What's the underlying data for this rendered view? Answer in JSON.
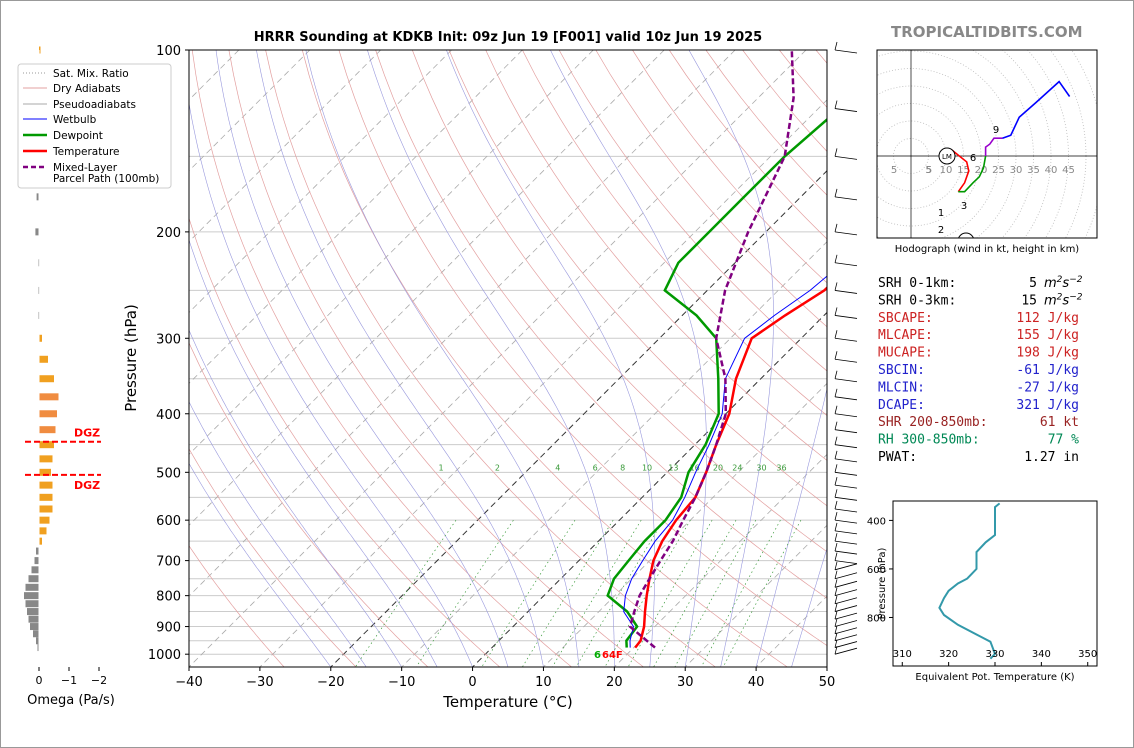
{
  "brand": "TROPICALTIDBITS.COM",
  "chart_data": [
    {
      "type": "line",
      "title": "HRRR Sounding at KDKB Init: 09z Jun 19 [F001] valid 10z Jun 19 2025",
      "xlabel": "Temperature (°C)",
      "ylabel": "Pressure (hPa)",
      "x_ticks": [
        "−40",
        "−30",
        "−20",
        "−10",
        "0",
        "10",
        "20",
        "30",
        "40",
        "50"
      ],
      "y_ticks": [
        "100",
        "200",
        "300",
        "400",
        "500",
        "600",
        "700",
        "800",
        "900",
        "1000"
      ],
      "xlim": [
        -40,
        50
      ],
      "ylim": [
        1050,
        100
      ],
      "y_scale": "log",
      "legend_position": "top-left",
      "legend": [
        "Sat. Mix. Ratio",
        "Dry Adiabats",
        "Pseudoadiabats",
        "Wetbulb",
        "Dewpoint",
        "Temperature",
        "Mixed-Layer",
        "Parcel Path (100mb)"
      ],
      "mixing_ratio_labels": [
        "1",
        "2",
        "4",
        "6",
        "8",
        "10",
        "13",
        "16",
        "20",
        "24",
        "30",
        "36"
      ],
      "surface_label": "64F",
      "series": [
        {
          "name": "Temperature",
          "color": "#ff0000",
          "points": [
            [
              20.2,
              975
            ],
            [
              20,
              950
            ],
            [
              18.5,
              900
            ],
            [
              16.5,
              850
            ],
            [
              14.5,
              800
            ],
            [
              12.5,
              750
            ],
            [
              10.5,
              700
            ],
            [
              9,
              650
            ],
            [
              8,
              600
            ],
            [
              7.5,
              550
            ],
            [
              5.5,
              500
            ],
            [
              3,
              450
            ],
            [
              0.5,
              400
            ],
            [
              -3.5,
              350
            ],
            [
              -7,
              300
            ],
            [
              -5.5,
              275
            ],
            [
              -3.5,
              250
            ],
            [
              -3,
              200
            ],
            [
              -3,
              175
            ],
            [
              -3.5,
              150
            ],
            [
              -4.5,
              125
            ],
            [
              -4,
              110
            ],
            [
              -1.5,
              100
            ]
          ]
        },
        {
          "name": "Dewpoint",
          "color": "#009900",
          "points": [
            [
              19,
              975
            ],
            [
              18,
              950
            ],
            [
              17.5,
              900
            ],
            [
              14,
              850
            ],
            [
              9,
              800
            ],
            [
              7.5,
              750
            ],
            [
              7,
              700
            ],
            [
              6.5,
              650
            ],
            [
              6.5,
              600
            ],
            [
              5.5,
              550
            ],
            [
              3,
              500
            ],
            [
              1.5,
              450
            ],
            [
              -1,
              400
            ],
            [
              -6,
              350
            ],
            [
              -12,
              300
            ],
            [
              -18,
              275
            ],
            [
              -26,
              250
            ],
            [
              -28,
              225
            ],
            [
              -28,
              200
            ],
            [
              -28,
              175
            ],
            [
              -28,
              150
            ],
            [
              -27,
              125
            ],
            [
              -25,
              100
            ]
          ]
        },
        {
          "name": "Wetbulb",
          "color": "#0000ff",
          "points": [
            [
              19.5,
              975
            ],
            [
              18.5,
              950
            ],
            [
              17,
              900
            ],
            [
              13.5,
              850
            ],
            [
              11.5,
              800
            ],
            [
              10,
              750
            ],
            [
              9,
              700
            ],
            [
              8,
              650
            ],
            [
              7.5,
              600
            ],
            [
              6,
              550
            ],
            [
              4,
              500
            ],
            [
              2,
              450
            ],
            [
              -0.5,
              400
            ],
            [
              -5,
              350
            ],
            [
              -8,
              300
            ],
            [
              -7,
              275
            ],
            [
              -5.5,
              250
            ],
            [
              -4,
              200
            ],
            [
              -3.5,
              175
            ],
            [
              -3.5,
              150
            ],
            [
              -4.5,
              125
            ],
            [
              -4,
              110
            ],
            [
              -1.5,
              100
            ]
          ]
        },
        {
          "name": "Mixed-Layer Parcel Path (100mb)",
          "color": "#800080",
          "points": [
            [
              23,
              975
            ],
            [
              16.5,
              900
            ],
            [
              15,
              850
            ],
            [
              13.5,
              800
            ],
            [
              12.5,
              750
            ],
            [
              11.5,
              700
            ],
            [
              10.5,
              650
            ],
            [
              9,
              600
            ],
            [
              7.5,
              550
            ],
            [
              5.5,
              500
            ],
            [
              3,
              450
            ],
            [
              0,
              400
            ],
            [
              -5,
              350
            ],
            [
              -12,
              300
            ],
            [
              -17.5,
              250
            ],
            [
              -22.5,
              200
            ],
            [
              -28,
              150
            ],
            [
              -35,
              120
            ],
            [
              -42,
              100
            ]
          ]
        }
      ]
    },
    {
      "type": "line",
      "title": "Hodograph (wind in kt, height in km)",
      "ring_labels": [
        "5",
        "10",
        "15",
        "20",
        "25",
        "30",
        "35",
        "40",
        "45"
      ],
      "left_ring_labels": [
        "5",
        "5"
      ],
      "markers": [
        "LM",
        "RM"
      ],
      "height_labels": [
        "1",
        "2",
        "3",
        "6",
        "9"
      ],
      "series": [
        {
          "name": "0-1km",
          "color": "#ff0000",
          "points": [
            [
              -6,
              2
            ],
            [
              1,
              -2
            ],
            [
              2,
              -5
            ],
            [
              0,
              -9
            ],
            [
              -3,
              -12
            ]
          ]
        },
        {
          "name": "1-3km",
          "color": "#009900",
          "points": [
            [
              -3,
              -12
            ],
            [
              0,
              -12
            ],
            [
              4,
              -9
            ],
            [
              7,
              -7
            ],
            [
              9,
              -4
            ],
            [
              10,
              0
            ]
          ]
        },
        {
          "name": "3-6km",
          "color": "#9900cc",
          "points": [
            [
              10,
              0
            ],
            [
              10,
              3
            ],
            [
              12,
              4
            ],
            [
              14,
              6
            ],
            [
              18,
              6
            ]
          ]
        },
        {
          "name": "6km+",
          "color": "#0000ff",
          "points": [
            [
              18,
              6
            ],
            [
              22,
              7
            ],
            [
              26,
              13
            ],
            [
              34,
              18
            ],
            [
              45,
              25
            ],
            [
              50,
              20
            ]
          ]
        }
      ]
    },
    {
      "type": "line",
      "xlabel": "Equivalent Pot. Temperature (K)",
      "ylabel": "Pressure (hPa)",
      "x_ticks": [
        "310",
        "320",
        "330",
        "340",
        "350"
      ],
      "y_ticks": [
        "400",
        "600",
        "800"
      ],
      "xlim": [
        308,
        352
      ],
      "ylim": [
        1000,
        320
      ],
      "series": [
        {
          "name": "Theta-E",
          "color": "#3399aa",
          "points": [
            [
              329,
              970
            ],
            [
              330,
              950
            ],
            [
              329,
              900
            ],
            [
              327,
              880
            ],
            [
              322,
              830
            ],
            [
              319,
              790
            ],
            [
              318,
              760
            ],
            [
              319,
              720
            ],
            [
              320,
              690
            ],
            [
              322,
              660
            ],
            [
              324,
              640
            ],
            [
              325,
              620
            ],
            [
              326,
              600
            ],
            [
              326,
              570
            ],
            [
              326,
              530
            ],
            [
              328,
              490
            ],
            [
              330,
              460
            ],
            [
              330,
              430
            ],
            [
              330,
              380
            ],
            [
              330,
              345
            ],
            [
              331,
              330
            ]
          ]
        }
      ]
    },
    {
      "type": "bar",
      "xlabel": "Omega (Pa/s)",
      "x_ticks": [
        "0",
        "−1",
        "−2"
      ],
      "dgz_label": "DGZ",
      "dgz_pressures": [
        445,
        505
      ],
      "bars": [
        {
          "p": 100,
          "omega": -0.05
        },
        {
          "p": 150,
          "omega": 0.08
        },
        {
          "p": 175,
          "omega": 0.08
        },
        {
          "p": 200,
          "omega": 0.12
        },
        {
          "p": 225,
          "omega": 0.03
        },
        {
          "p": 250,
          "omega": 0.03
        },
        {
          "p": 275,
          "omega": 0.03
        },
        {
          "p": 300,
          "omega": -0.1
        },
        {
          "p": 325,
          "omega": -0.3
        },
        {
          "p": 350,
          "omega": -0.5
        },
        {
          "p": 375,
          "omega": -0.65
        },
        {
          "p": 400,
          "omega": -0.6
        },
        {
          "p": 425,
          "omega": -0.55
        },
        {
          "p": 450,
          "omega": -0.5
        },
        {
          "p": 475,
          "omega": -0.45
        },
        {
          "p": 500,
          "omega": -0.4
        },
        {
          "p": 525,
          "omega": -0.45
        },
        {
          "p": 550,
          "omega": -0.45
        },
        {
          "p": 575,
          "omega": -0.45
        },
        {
          "p": 600,
          "omega": -0.35
        },
        {
          "p": 625,
          "omega": -0.25
        },
        {
          "p": 650,
          "omega": -0.1
        },
        {
          "p": 675,
          "omega": 0.1
        },
        {
          "p": 700,
          "omega": 0.15
        },
        {
          "p": 725,
          "omega": 0.25
        },
        {
          "p": 750,
          "omega": 0.35
        },
        {
          "p": 775,
          "omega": 0.45
        },
        {
          "p": 800,
          "omega": 0.5
        },
        {
          "p": 825,
          "omega": 0.45
        },
        {
          "p": 850,
          "omega": 0.4
        },
        {
          "p": 875,
          "omega": 0.35
        },
        {
          "p": 900,
          "omega": 0.3
        },
        {
          "p": 925,
          "omega": 0.2
        },
        {
          "p": 950,
          "omega": 0.1
        },
        {
          "p": 975,
          "omega": 0.05
        }
      ]
    }
  ],
  "indices": [
    {
      "label": "SRH 0-1km:",
      "value": "5",
      "unit": "m2s-2",
      "color": "#000000"
    },
    {
      "label": "SRH 0-3km:",
      "value": "15",
      "unit": "m2s-2",
      "color": "#000000"
    },
    {
      "label": "SBCAPE:",
      "value": "112 J/kg",
      "color": "#cc2222"
    },
    {
      "label": "MLCAPE:",
      "value": "155 J/kg",
      "color": "#cc2222"
    },
    {
      "label": "MUCAPE:",
      "value": "198 J/kg",
      "color": "#cc2222"
    },
    {
      "label": "SBCIN:",
      "value": "-61 J/kg",
      "color": "#2222cc"
    },
    {
      "label": "MLCIN:",
      "value": "-27 J/kg",
      "color": "#2222cc"
    },
    {
      "label": "DCAPE:",
      "value": "321 J/kg",
      "color": "#2222cc"
    },
    {
      "label": "SHR 200-850mb:",
      "value": "61 kt",
      "color": "#992222"
    },
    {
      "label": "RH 300-850mb:",
      "value": "77 %",
      "color": "#008855"
    },
    {
      "label": "PWAT:",
      "value": "1.27 in",
      "color": "#000000"
    }
  ]
}
